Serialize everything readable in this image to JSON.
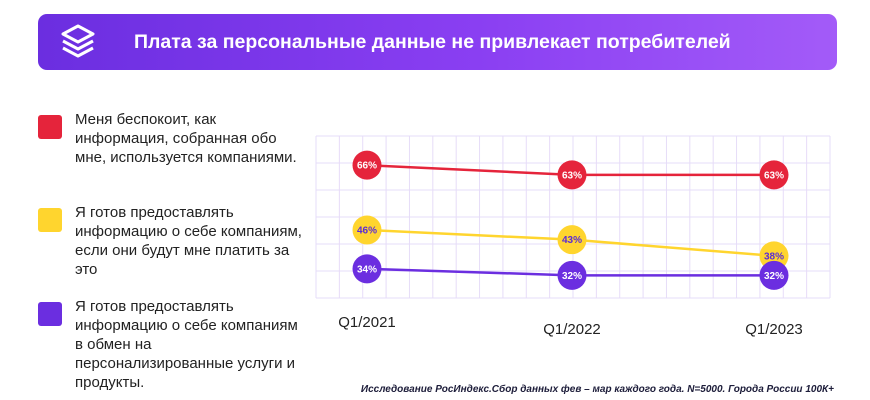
{
  "header": {
    "title": "Плата за персональные данные не привлекает потребителей",
    "logo_icon": "stacked-layers-logo-icon"
  },
  "colors": {
    "banner": "#7b36ea",
    "red": "#e5243b",
    "yellow": "#ffd52e",
    "purple": "#6b2ee0",
    "grid": "#e6dcf8"
  },
  "chart_data": {
    "type": "line",
    "categories": [
      "Q1/2021",
      "Q1/2022",
      "Q1/2023"
    ],
    "ylim": [
      25,
      75
    ],
    "grid": true,
    "legend_position": "left",
    "series": [
      {
        "name": "Меня беспокоит, как информация, собранная обо мне, используется компаниями.",
        "color": "#e5243b",
        "values": [
          66,
          63,
          63
        ],
        "labels": [
          "66%",
          "63%",
          "63%"
        ],
        "label_color": "#ffffff"
      },
      {
        "name": "Я готов предоставлять информацию о себе компаниям, если они будут мне платить за это",
        "color": "#ffd52e",
        "values": [
          46,
          43,
          38
        ],
        "labels": [
          "46%",
          "43%",
          "38%"
        ],
        "label_color": "#5b2bd6"
      },
      {
        "name": "Я готов предоставлять информацию о себе компаниям в обмен на персонализированные услуги и продукты.",
        "color": "#6b2ee0",
        "values": [
          34,
          32,
          32
        ],
        "labels": [
          "34%",
          "32%",
          "32%"
        ],
        "label_color": "#ffffff"
      }
    ]
  },
  "source": "Исследование РосИндекс.Сбор данных фев – мар каждого года. N=5000. Города России 100К+"
}
